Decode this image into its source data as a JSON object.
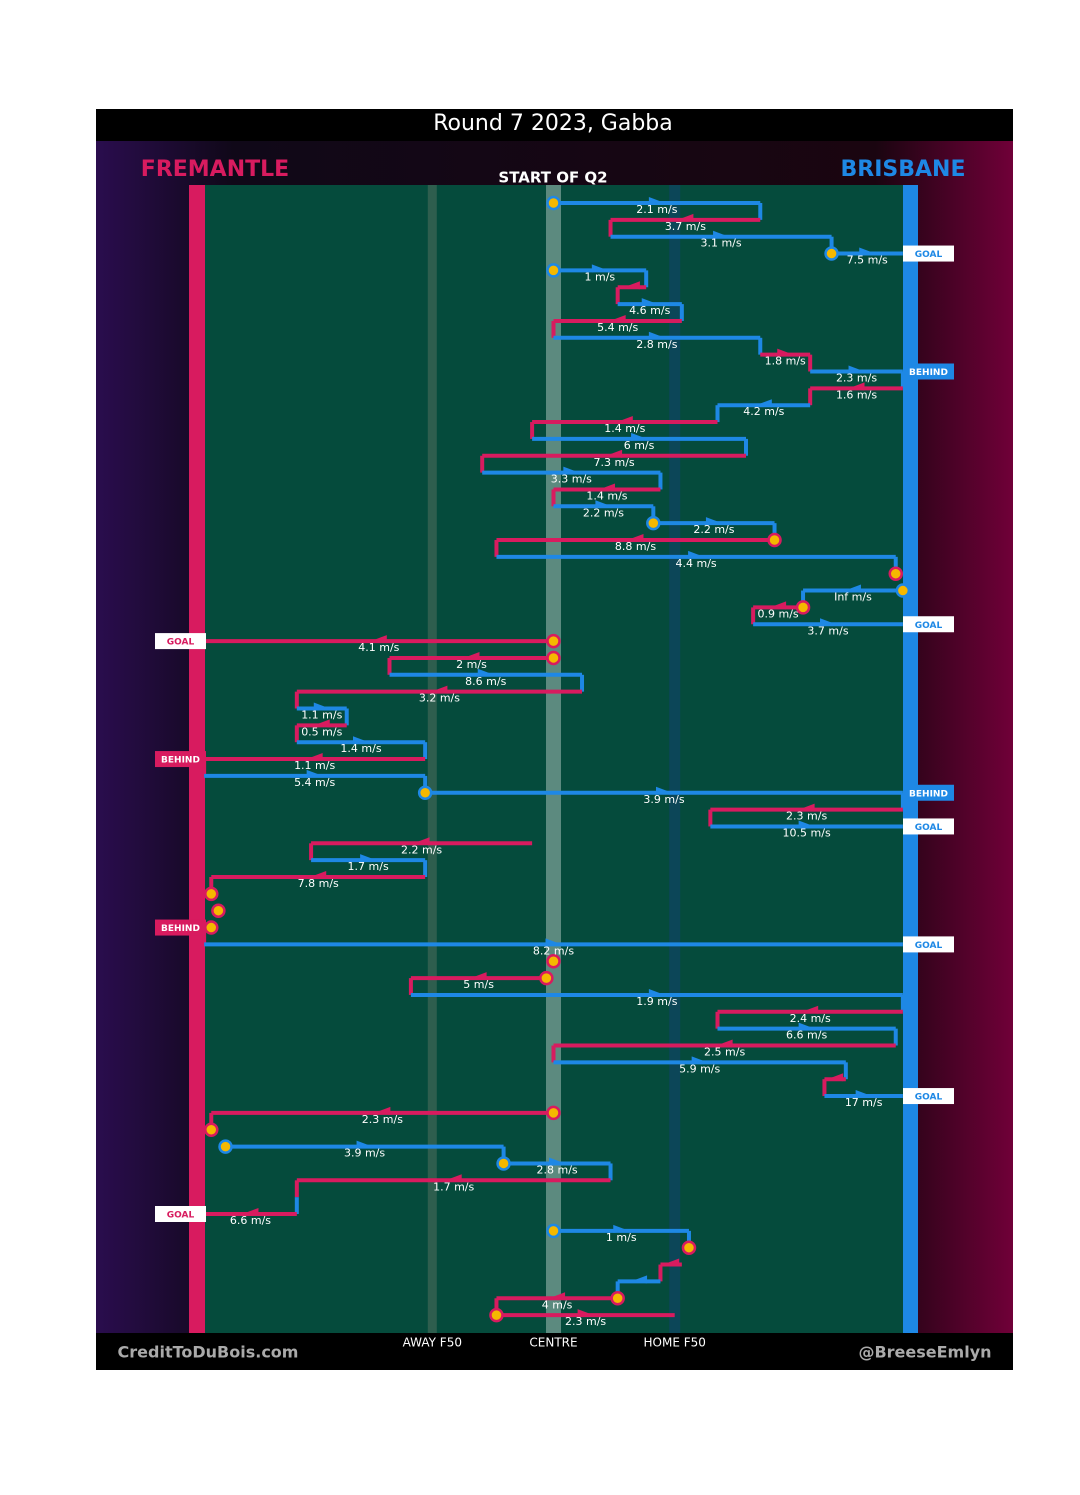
{
  "title": "Round 7 2023, Gabba",
  "period": "START OF Q2",
  "teams": {
    "left": {
      "name": "FREMANTLE",
      "color": "#d81b5f"
    },
    "right": {
      "name": "BRISBANE",
      "color": "#1e88e5"
    }
  },
  "field_lines": [
    {
      "label": "AWAY F50",
      "position": 33
    },
    {
      "label": "CENTRE",
      "position": 50
    },
    {
      "label": "HOME F50",
      "position": 67
    }
  ],
  "footer": {
    "left": "CreditToDuBois.com",
    "right": "@BreeseEmlyn"
  },
  "rows": [
    {
      "team": "right",
      "from": 50,
      "to": 79,
      "speed": "2.1 m/s",
      "start_marker": true
    },
    {
      "team": "left",
      "from": 79,
      "to": 58,
      "speed": "3.7 m/s"
    },
    {
      "team": "right",
      "from": 58,
      "to": 89,
      "speed": "3.1 m/s"
    },
    {
      "team": "right",
      "from": 89,
      "to": 99,
      "speed": "7.5 m/s",
      "start_marker": true,
      "outcome": "GOAL"
    },
    {
      "team": "right",
      "from": 50,
      "to": 63,
      "speed": "1 m/s",
      "start_marker": true
    },
    {
      "team": "left",
      "from": 63,
      "to": 59
    },
    {
      "team": "right",
      "from": 59,
      "to": 68,
      "speed": "4.6 m/s"
    },
    {
      "team": "left",
      "from": 68,
      "to": 50,
      "speed": "5.4 m/s"
    },
    {
      "team": "right",
      "from": 50,
      "to": 79,
      "speed": "2.8 m/s"
    },
    {
      "team": "left",
      "from": 79,
      "to": 86,
      "speed": "1.8 m/s"
    },
    {
      "team": "right",
      "from": 86,
      "to": 99,
      "speed": "2.3 m/s",
      "outcome": "BEHIND"
    },
    {
      "team": "left",
      "from": 99,
      "to": 86,
      "speed": "1.6 m/s"
    },
    {
      "team": "right",
      "from": 86,
      "to": 73,
      "speed": "4.2 m/s"
    },
    {
      "team": "left",
      "from": 73,
      "to": 47,
      "speed": "1.4 m/s"
    },
    {
      "team": "right",
      "from": 47,
      "to": 77,
      "speed": "6 m/s"
    },
    {
      "team": "left",
      "from": 77,
      "to": 40,
      "speed": "7.3 m/s"
    },
    {
      "team": "right",
      "from": 40,
      "to": 65,
      "speed": "3.3 m/s"
    },
    {
      "team": "left",
      "from": 65,
      "to": 50,
      "speed": "1.4 m/s"
    },
    {
      "team": "right",
      "from": 50,
      "to": 64,
      "speed": "2.2 m/s"
    },
    {
      "team": "right",
      "from": 64,
      "to": 81,
      "speed": "2.2 m/s",
      "start_marker": true
    },
    {
      "team": "left",
      "from": 81,
      "to": 42,
      "speed": "8.8 m/s",
      "start_marker": true
    },
    {
      "team": "right",
      "from": 42,
      "to": 98,
      "speed": "4.4 m/s"
    },
    {
      "marker": 98
    },
    {
      "team": "right",
      "from": 99,
      "to": 85,
      "speed": "Inf m/s",
      "start_marker": true
    },
    {
      "team": "left",
      "from": 85,
      "to": 78,
      "speed": "0.9 m/s",
      "start_marker": true
    },
    {
      "team": "right",
      "from": 78,
      "to": 99,
      "speed": "3.7 m/s",
      "outcome": "GOAL"
    },
    {
      "team": "left",
      "from": 50,
      "to": 1,
      "speed": "4.1 m/s",
      "start_marker": true,
      "outcome": "GOAL"
    },
    {
      "team": "left",
      "from": 50,
      "to": 27,
      "speed": "2 m/s",
      "start_marker": true
    },
    {
      "team": "right",
      "from": 27,
      "to": 54,
      "speed": "8.6 m/s"
    },
    {
      "team": "left",
      "from": 54,
      "to": 14,
      "speed": "3.2 m/s"
    },
    {
      "team": "right",
      "from": 14,
      "to": 21,
      "speed": "1.1 m/s"
    },
    {
      "team": "left",
      "from": 21,
      "to": 14,
      "speed": "0.5 m/s"
    },
    {
      "team": "right",
      "from": 14,
      "to": 32,
      "speed": "1.4 m/s"
    },
    {
      "team": "left",
      "from": 32,
      "to": 1,
      "speed": "1.1 m/s",
      "outcome": "BEHIND"
    },
    {
      "team": "right",
      "from": 1,
      "to": 32,
      "speed": "5.4 m/s"
    },
    {
      "team": "right",
      "from": 32,
      "to": 99,
      "speed": "3.9 m/s",
      "start_marker": true,
      "outcome": "BEHIND"
    },
    {
      "team": "left",
      "from": 99,
      "to": 72,
      "speed": "2.3 m/s"
    },
    {
      "team": "right",
      "from": 72,
      "to": 99,
      "speed": "10.5 m/s",
      "outcome": "GOAL"
    },
    {
      "team": "left",
      "from": 47,
      "to": 16,
      "speed": "2.2 m/s"
    },
    {
      "team": "right",
      "from": 16,
      "to": 32,
      "speed": "1.7 m/s"
    },
    {
      "team": "left",
      "from": 32,
      "to": 2,
      "speed": "7.8 m/s"
    },
    {
      "marker": 2
    },
    {
      "marker": 3
    },
    {
      "team": "left",
      "from": 2,
      "to": 1,
      "start_marker": true,
      "outcome": "BEHIND"
    },
    {
      "team": "right",
      "from": 1,
      "to": 99,
      "speed": "8.2 m/s",
      "outcome": "GOAL"
    },
    {
      "marker": 50
    },
    {
      "team": "left",
      "from": 49,
      "to": 30,
      "speed": "5 m/s",
      "start_marker": true
    },
    {
      "team": "right",
      "from": 30,
      "to": 99,
      "speed": "1.9 m/s"
    },
    {
      "team": "left",
      "from": 99,
      "to": 73,
      "speed": "2.4 m/s"
    },
    {
      "team": "right",
      "from": 73,
      "to": 98,
      "speed": "6.6 m/s"
    },
    {
      "team": "left",
      "from": 98,
      "to": 50,
      "speed": "2.5 m/s"
    },
    {
      "team": "right",
      "from": 50,
      "to": 91,
      "speed": "5.9 m/s"
    },
    {
      "team": "left",
      "from": 91,
      "to": 88
    },
    {
      "team": "right",
      "from": 88,
      "to": 99,
      "speed": "17 m/s",
      "outcome": "GOAL"
    },
    {
      "team": "left",
      "from": 50,
      "to": 2,
      "speed": "2.3 m/s",
      "start_marker": true
    },
    {
      "marker": 2
    },
    {
      "team": "right",
      "from": 4,
      "to": 43,
      "speed": "3.9 m/s",
      "start_marker": true
    },
    {
      "team": "right",
      "from": 43,
      "to": 58,
      "speed": "2.8 m/s",
      "start_marker": true
    },
    {
      "team": "left",
      "from": 58,
      "to": 14,
      "speed": "1.7 m/s"
    },
    {
      "team": "right",
      "from": 14,
      "to": 14
    },
    {
      "team": "left",
      "from": 14,
      "to": 1,
      "speed": "6.6 m/s",
      "outcome": "GOAL"
    },
    {
      "team": "right",
      "from": 50,
      "to": 69,
      "speed": "1 m/s",
      "start_marker": true
    },
    {
      "marker": 69
    },
    {
      "team": "left",
      "from": 68,
      "to": 65
    },
    {
      "team": "right",
      "from": 65,
      "to": 59
    },
    {
      "team": "left",
      "from": 59,
      "to": 42,
      "speed": "4 m/s",
      "start_marker": true
    },
    {
      "team": "left",
      "from": 42,
      "to": 67,
      "speed": "2.3 m/s",
      "start_marker": true
    }
  ]
}
